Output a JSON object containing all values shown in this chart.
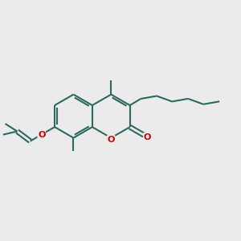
{
  "bg_color": "#ebebeb",
  "bond_color": "#2d6b5e",
  "oxygen_color": "#cc0000",
  "line_width": 1.5,
  "fig_size": [
    3.0,
    3.0
  ],
  "dpi": 100,
  "xlim": [
    -4.5,
    6.5
  ],
  "ylim": [
    -3.5,
    3.5
  ]
}
